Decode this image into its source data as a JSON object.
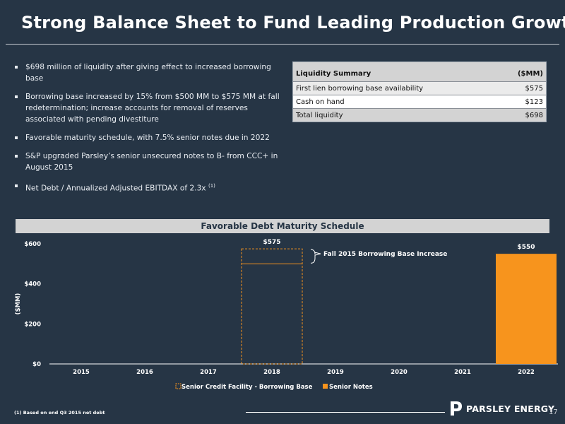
{
  "title": "Strong Balance Sheet to Fund Leading Production Growth",
  "bullets": [
    "$698 million of liquidity after giving effect to increased borrowing base",
    "Borrowing base increased by 15% from $500 MM to $575 MM at fall redetermination; increase accounts for removal of reserves associated with pending divestiture",
    "Favorable maturity schedule, with 7.5% senior notes due in 2022",
    "S&P upgraded Parsley’s senior unsecured notes to B- from CCC+ in August 2015",
    "Net Debt / Annualized Adjusted EBITDAX of 2.3x"
  ],
  "bullet5_footnote_ref": "(1)",
  "liquidity": {
    "header_label": "Liquidity Summary",
    "header_unit": "($MM)",
    "rows": [
      {
        "label": "First lien borrowing base availability",
        "value": "$575"
      },
      {
        "label": "Cash on hand",
        "value": "$123"
      },
      {
        "label": "Total liquidity",
        "value": "$698"
      }
    ]
  },
  "chart_banner": "Favorable Debt Maturity Schedule",
  "chart_data": {
    "type": "bar",
    "title": "Favorable Debt Maturity Schedule",
    "categories": [
      "2015",
      "2016",
      "2017",
      "2018",
      "2019",
      "2020",
      "2021",
      "2022"
    ],
    "series": [
      {
        "name": "Senior Credit Facility - Borrowing Base",
        "values": [
          0,
          0,
          0,
          575,
          0,
          0,
          0,
          0
        ],
        "color": "#f7941d",
        "style": "dashed-outline"
      },
      {
        "name": "Senior Notes",
        "values": [
          0,
          0,
          0,
          0,
          0,
          0,
          0,
          550
        ],
        "color": "#f7941d",
        "style": "solid"
      }
    ],
    "prior_borrowing_base": 500,
    "data_labels": {
      "2018": "$575",
      "2022": "$550"
    },
    "annotation": "Fall 2015 Borrowing Base Increase",
    "ylabel": "($MM)",
    "yticks": [
      "$0",
      "$200",
      "$400",
      "$600"
    ],
    "ylim": [
      0,
      600
    ],
    "grid": false,
    "legend_position": "bottom"
  },
  "footnote": "(1) Based on end Q3 2015 net debt",
  "logo_text": "PARSLEY ENERGY",
  "page_number": "17",
  "colors": {
    "background": "#263545",
    "accent": "#f7941d",
    "banner": "#d3d3d3"
  }
}
